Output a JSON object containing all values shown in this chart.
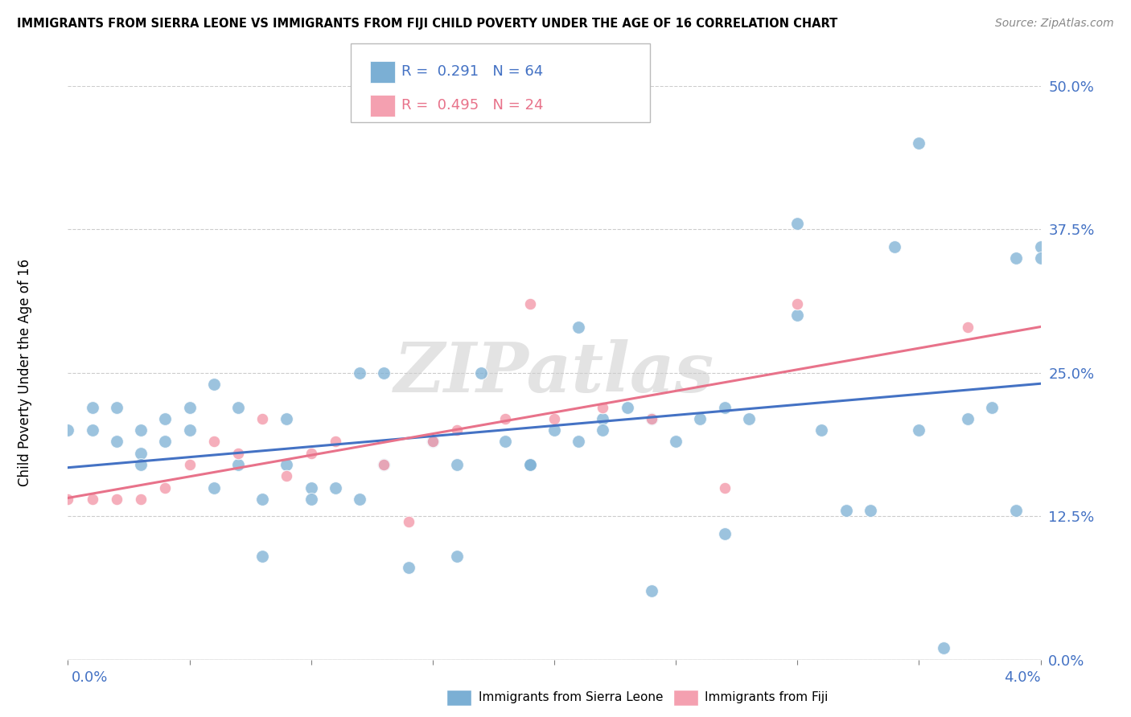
{
  "title": "IMMIGRANTS FROM SIERRA LEONE VS IMMIGRANTS FROM FIJI CHILD POVERTY UNDER THE AGE OF 16 CORRELATION CHART",
  "source": "Source: ZipAtlas.com",
  "ylabel": "Child Poverty Under the Age of 16",
  "ylabel_ticks": [
    "0.0%",
    "12.5%",
    "25.0%",
    "37.5%",
    "50.0%"
  ],
  "legend_label_sl": "Immigrants from Sierra Leone",
  "legend_label_fiji": "Immigrants from Fiji",
  "color_sl": "#7bafd4",
  "color_fiji": "#f4a0b0",
  "trendline_sl_color": "#4472c4",
  "trendline_fiji_color": "#e8728a",
  "watermark": "ZIPatlas",
  "sierra_leone_x": [
    0.0,
    0.001,
    0.001,
    0.002,
    0.002,
    0.003,
    0.003,
    0.003,
    0.004,
    0.004,
    0.005,
    0.005,
    0.006,
    0.006,
    0.007,
    0.007,
    0.008,
    0.008,
    0.009,
    0.009,
    0.01,
    0.01,
    0.011,
    0.012,
    0.012,
    0.013,
    0.013,
    0.014,
    0.015,
    0.015,
    0.016,
    0.016,
    0.017,
    0.018,
    0.019,
    0.019,
    0.02,
    0.021,
    0.021,
    0.022,
    0.022,
    0.023,
    0.024,
    0.024,
    0.025,
    0.026,
    0.027,
    0.027,
    0.028,
    0.03,
    0.03,
    0.031,
    0.032,
    0.033,
    0.034,
    0.035,
    0.035,
    0.036,
    0.037,
    0.038,
    0.039,
    0.039,
    0.04,
    0.04
  ],
  "sierra_leone_y": [
    0.2,
    0.22,
    0.2,
    0.19,
    0.22,
    0.2,
    0.18,
    0.17,
    0.21,
    0.19,
    0.2,
    0.22,
    0.24,
    0.15,
    0.22,
    0.17,
    0.09,
    0.14,
    0.21,
    0.17,
    0.15,
    0.14,
    0.15,
    0.14,
    0.25,
    0.25,
    0.17,
    0.08,
    0.19,
    0.19,
    0.17,
    0.09,
    0.25,
    0.19,
    0.17,
    0.17,
    0.2,
    0.29,
    0.19,
    0.21,
    0.2,
    0.22,
    0.21,
    0.06,
    0.19,
    0.21,
    0.22,
    0.11,
    0.21,
    0.3,
    0.38,
    0.2,
    0.13,
    0.13,
    0.36,
    0.45,
    0.2,
    0.01,
    0.21,
    0.22,
    0.35,
    0.13,
    0.36,
    0.35
  ],
  "fiji_x": [
    0.0,
    0.001,
    0.002,
    0.003,
    0.004,
    0.005,
    0.006,
    0.007,
    0.008,
    0.009,
    0.01,
    0.011,
    0.013,
    0.014,
    0.015,
    0.016,
    0.018,
    0.019,
    0.02,
    0.022,
    0.024,
    0.027,
    0.03,
    0.037
  ],
  "fiji_y": [
    0.14,
    0.14,
    0.14,
    0.14,
    0.15,
    0.17,
    0.19,
    0.18,
    0.21,
    0.16,
    0.18,
    0.19,
    0.17,
    0.12,
    0.19,
    0.2,
    0.21,
    0.31,
    0.21,
    0.22,
    0.21,
    0.15,
    0.31,
    0.29
  ],
  "xmin": 0.0,
  "xmax": 0.04,
  "ymin": 0.0,
  "ymax": 0.5
}
